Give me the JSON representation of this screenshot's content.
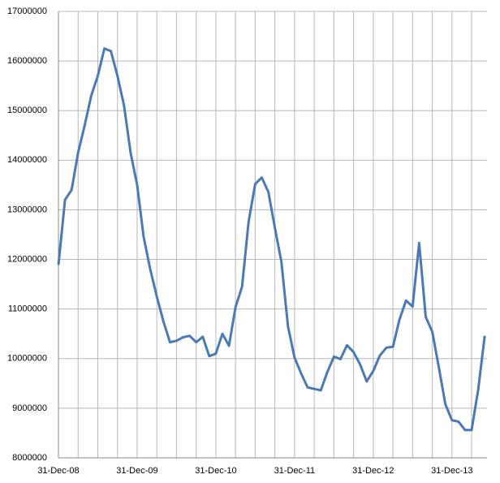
{
  "chart_data": {
    "type": "line",
    "categories": [
      "31-Dec-08",
      null,
      null,
      null,
      null,
      null,
      null,
      null,
      null,
      null,
      null,
      null,
      "31-Dec-09",
      null,
      null,
      null,
      null,
      null,
      null,
      null,
      null,
      null,
      null,
      null,
      "31-Dec-10",
      null,
      null,
      null,
      null,
      null,
      null,
      null,
      null,
      null,
      null,
      null,
      "31-Dec-11",
      null,
      null,
      null,
      null,
      null,
      null,
      null,
      null,
      null,
      null,
      null,
      "31-Dec-12",
      null,
      null,
      null,
      null,
      null,
      null,
      null,
      null,
      null,
      null,
      null,
      "31-Dec-13",
      null,
      null,
      null,
      null,
      null
    ],
    "values": [
      11890000,
      13200000,
      13400000,
      14150000,
      14700000,
      15300000,
      15700000,
      16250000,
      16200000,
      15700000,
      15100000,
      14150000,
      13500000,
      12450000,
      11800000,
      11250000,
      10750000,
      10330000,
      10360000,
      10430000,
      10460000,
      10330000,
      10440000,
      10050000,
      10100000,
      10500000,
      10260000,
      11040000,
      11450000,
      12760000,
      13520000,
      13650000,
      13360000,
      12640000,
      11950000,
      10650000,
      10020000,
      9700000,
      9420000,
      9390000,
      9360000,
      9730000,
      10040000,
      9990000,
      10270000,
      10130000,
      9880000,
      9540000,
      9750000,
      10060000,
      10220000,
      10240000,
      10790000,
      11170000,
      11050000,
      12330000,
      10840000,
      10540000,
      9830000,
      9080000,
      8760000,
      8730000,
      8560000,
      8560000,
      9370000,
      10460000
    ],
    "color": "#4a7ab5",
    "ylim": [
      8000000,
      17000000
    ],
    "yticks": [
      8000000,
      9000000,
      10000000,
      11000000,
      12000000,
      13000000,
      14000000,
      15000000,
      16000000,
      17000000
    ],
    "grid": true
  }
}
